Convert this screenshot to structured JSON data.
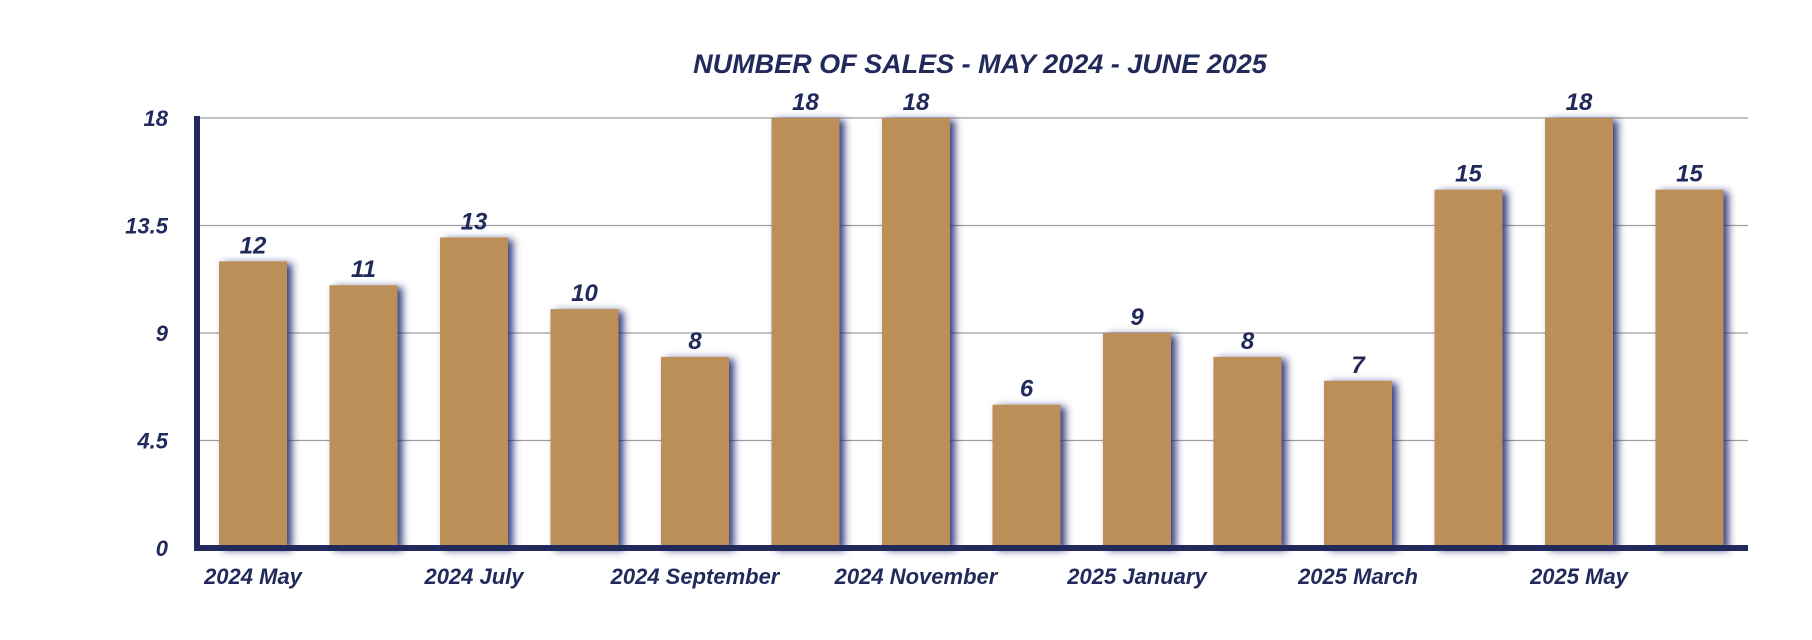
{
  "chart_data": {
    "type": "bar",
    "title": "NUMBER OF SALES - MAY 2024 - JUNE 2025",
    "xlabel": "",
    "ylabel": "",
    "categories": [
      "2024 May",
      "",
      "2024 July",
      "",
      "2024 September",
      "",
      "2024 November",
      "",
      "2025 January",
      "",
      "2025 March",
      "",
      "2025 May",
      ""
    ],
    "values": [
      12,
      11,
      13,
      10,
      8,
      18,
      18,
      6,
      9,
      8,
      7,
      15,
      18,
      15
    ],
    "ylim": [
      0,
      18
    ],
    "yticks": [
      "0",
      "4.5",
      "9",
      "13.5",
      "18"
    ],
    "grid": true,
    "legend": "none",
    "colors": {
      "bar": "#bd8f58",
      "bar_shadow": "#1f2870",
      "axis": "#222a5c",
      "gridline": "#9e9e9e",
      "text": "#222a5c"
    }
  }
}
